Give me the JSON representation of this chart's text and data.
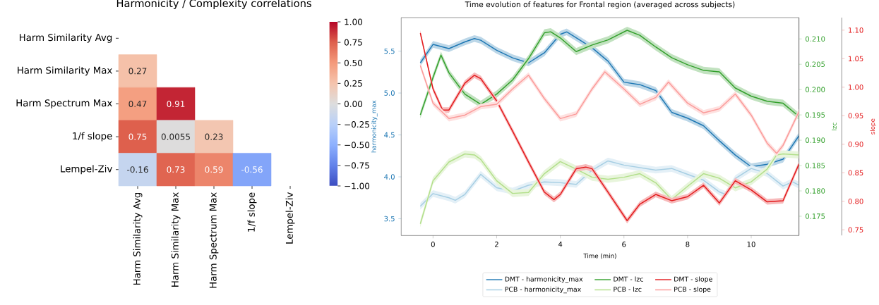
{
  "chart_data": [
    {
      "type": "heatmap",
      "title": "Harmonicity / Complexity correlations",
      "categories": [
        "Harm Similarity Avg",
        "Harm Similarity Max",
        "Harm Spectrum Max",
        "1/f slope",
        "Lempel-Ziv"
      ],
      "y_categories": [
        "Harm Similarity Avg",
        "Harm Similarity Max",
        "Harm Spectrum Max",
        "1/f slope",
        "Lempel-Ziv"
      ],
      "cells": [
        [
          null,
          null,
          null,
          null,
          null
        ],
        [
          0.27,
          null,
          null,
          null,
          null
        ],
        [
          0.47,
          0.91,
          null,
          null,
          null
        ],
        [
          0.75,
          0.0055,
          0.23,
          null,
          null
        ],
        [
          -0.16,
          0.73,
          0.59,
          -0.56,
          null
        ]
      ],
      "clim": [
        -1,
        1
      ],
      "cticks": [
        {
          "value": -1,
          "label": "−1.00"
        },
        {
          "value": -0.75,
          "label": "−0.75"
        },
        {
          "value": -0.5,
          "label": "−0.50"
        },
        {
          "value": -0.25,
          "label": "−0.25"
        },
        {
          "value": 0,
          "label": "0.00"
        },
        {
          "value": 0.25,
          "label": "0.25"
        },
        {
          "value": 0.5,
          "label": "0.50"
        },
        {
          "value": 0.75,
          "label": "0.75"
        },
        {
          "value": 1,
          "label": "1.00"
        }
      ],
      "data_labels": true
    },
    {
      "type": "line",
      "title": "Time evolution of features for Frontal region (averaged across subjects)",
      "xlabel": "Time (min)",
      "ylabel": "harmonicity_max",
      "y2label": "lzc",
      "y3label": "slope",
      "xlim": [
        -1,
        11.5
      ],
      "xticks": [
        0,
        2,
        4,
        6,
        8,
        10
      ],
      "ylim": [
        3.3,
        5.9
      ],
      "yticks": [
        3.5,
        {
          "value": 4,
          "label": "4.0"
        },
        4.5,
        {
          "value": 5,
          "label": "5.0"
        },
        5.5
      ],
      "y2lim": [
        0.1712,
        0.2142
      ],
      "y2ticks": [
        0.175,
        {
          "value": 0.18,
          "label": "0.180"
        },
        0.185,
        {
          "value": 0.19,
          "label": "0.190"
        },
        0.195,
        {
          "value": 0.2,
          "label": "0.200"
        },
        0.205,
        {
          "value": 0.21,
          "label": "0.210"
        }
      ],
      "y3lim": [
        0.74,
        1.122
      ],
      "y3ticks": [
        0.75,
        {
          "value": 0.8,
          "label": "0.80"
        },
        0.85,
        {
          "value": 0.9,
          "label": "0.90"
        },
        0.95,
        {
          "value": 1,
          "label": "1.00"
        },
        1.05,
        {
          "value": 1.1,
          "label": "1.10"
        }
      ],
      "legend": "bottom",
      "series": [
        {
          "name": "DMT - harmonicity_max",
          "color": "#1f78b4",
          "axis": "y",
          "x": [
            -0.4,
            0,
            0.5,
            1,
            1.3,
            1.5,
            2,
            2.5,
            3,
            3.5,
            4,
            4.2,
            4.5,
            5,
            5.5,
            6,
            6.5,
            7,
            7.5,
            8,
            8.5,
            9,
            9.5,
            10,
            10.5,
            11,
            11.5
          ],
          "values": [
            5.36,
            5.58,
            5.53,
            5.61,
            5.65,
            5.63,
            5.51,
            5.42,
            5.36,
            5.48,
            5.7,
            5.73,
            5.66,
            5.54,
            5.38,
            5.13,
            5.1,
            5.03,
            4.77,
            4.7,
            4.61,
            4.43,
            4.26,
            4.12,
            4.15,
            4.21,
            4.49
          ],
          "lower": [
            5.32,
            5.54,
            5.49,
            5.57,
            5.61,
            5.59,
            5.47,
            5.38,
            5.32,
            5.44,
            5.66,
            5.69,
            5.62,
            5.5,
            5.34,
            5.09,
            5.06,
            4.99,
            4.73,
            4.66,
            4.57,
            4.39,
            4.22,
            4.08,
            4.11,
            4.17,
            4.45
          ],
          "upper": [
            5.4,
            5.62,
            5.57,
            5.65,
            5.69,
            5.67,
            5.55,
            5.46,
            5.4,
            5.52,
            5.74,
            5.77,
            5.7,
            5.58,
            5.42,
            5.17,
            5.14,
            5.07,
            4.81,
            4.74,
            4.65,
            4.47,
            4.3,
            4.16,
            4.19,
            4.25,
            4.53
          ]
        },
        {
          "name": "PCB - harmonicity_max",
          "color": "#a6cee3",
          "axis": "y",
          "x": [
            -0.4,
            0,
            0.5,
            0.7,
            1,
            1.5,
            2,
            2.5,
            3,
            3.5,
            4,
            4.5,
            5,
            5.5,
            6,
            7,
            7.5,
            8,
            8.5,
            9,
            9.2,
            9.5,
            10,
            10.5,
            11,
            11.3,
            11.5
          ],
          "values": [
            3.65,
            3.8,
            3.75,
            3.72,
            3.79,
            4.03,
            3.87,
            3.83,
            3.9,
            3.94,
            3.93,
            3.91,
            4.08,
            4.19,
            4.14,
            4.08,
            4.1,
            4.03,
            3.96,
            3.82,
            3.79,
            3.98,
            4.1,
            4.04,
            3.89,
            3.94,
            3.9
          ],
          "lower": [
            3.61,
            3.76,
            3.71,
            3.68,
            3.75,
            3.99,
            3.83,
            3.79,
            3.86,
            3.9,
            3.89,
            3.87,
            4.04,
            4.15,
            4.1,
            4.04,
            4.06,
            3.99,
            3.92,
            3.78,
            3.75,
            3.94,
            4.06,
            4.0,
            3.85,
            3.9,
            3.86
          ],
          "upper": [
            3.69,
            3.84,
            3.79,
            3.76,
            3.83,
            4.07,
            3.91,
            3.87,
            3.94,
            3.98,
            3.97,
            3.95,
            4.12,
            4.23,
            4.18,
            4.12,
            4.14,
            4.07,
            4.0,
            3.86,
            3.83,
            4.02,
            4.14,
            4.08,
            3.93,
            3.98,
            3.94
          ]
        },
        {
          "name": "DMT - lzc",
          "color": "#33a02c",
          "axis": "y2",
          "x": [
            -0.4,
            0,
            0.25,
            0.5,
            1,
            1.5,
            2,
            2.5,
            3,
            3.5,
            3.7,
            4,
            4.5,
            5,
            5.5,
            6.1,
            6.5,
            7,
            7.5,
            8,
            8.5,
            9,
            9.5,
            10,
            10.5,
            11,
            11.5
          ],
          "values": [
            0.195,
            0.2024,
            0.2068,
            0.2033,
            0.1991,
            0.1971,
            0.1991,
            0.2019,
            0.2061,
            0.2112,
            0.2114,
            0.2102,
            0.2075,
            0.2088,
            0.2098,
            0.2117,
            0.2107,
            0.2084,
            0.2063,
            0.2049,
            0.2038,
            0.2035,
            0.2003,
            0.1987,
            0.1977,
            0.1973,
            0.1947
          ],
          "lower": [
            0.1943,
            0.2017,
            0.2061,
            0.2026,
            0.1984,
            0.1964,
            0.1984,
            0.2012,
            0.2054,
            0.2105,
            0.2107,
            0.2095,
            0.2068,
            0.2081,
            0.2091,
            0.211,
            0.21,
            0.2077,
            0.2056,
            0.2042,
            0.2031,
            0.2028,
            0.1996,
            0.198,
            0.197,
            0.1966,
            0.194
          ],
          "upper": [
            0.1957,
            0.2031,
            0.2075,
            0.204,
            0.1998,
            0.1978,
            0.1998,
            0.2026,
            0.2068,
            0.2119,
            0.2121,
            0.2109,
            0.2082,
            0.2095,
            0.2105,
            0.2124,
            0.2114,
            0.2091,
            0.207,
            0.2056,
            0.2045,
            0.2042,
            0.201,
            0.1994,
            0.1984,
            0.198,
            0.1954
          ]
        },
        {
          "name": "PCB - lzc",
          "color": "#b2df8a",
          "axis": "y2",
          "x": [
            -0.4,
            0,
            0.5,
            1,
            1.3,
            1.5,
            2,
            2.5,
            3,
            3.5,
            4,
            4.5,
            5,
            5.5,
            6,
            6.5,
            7,
            7.5,
            8,
            8.5,
            9,
            9.5,
            10,
            10.5,
            10.8,
            11,
            11.5
          ],
          "values": [
            0.1735,
            0.182,
            0.1857,
            0.1873,
            0.1871,
            0.1862,
            0.182,
            0.1795,
            0.1797,
            0.1834,
            0.1858,
            0.1843,
            0.1827,
            0.1823,
            0.1827,
            0.1834,
            0.1816,
            0.1783,
            0.1809,
            0.1834,
            0.1825,
            0.1806,
            0.1818,
            0.1843,
            0.1871,
            0.1873,
            0.1871
          ],
          "lower": [
            0.1728,
            0.1813,
            0.185,
            0.1866,
            0.1864,
            0.1855,
            0.1813,
            0.1788,
            0.179,
            0.1827,
            0.1851,
            0.1836,
            0.182,
            0.1816,
            0.182,
            0.1827,
            0.1809,
            0.1776,
            0.1802,
            0.1827,
            0.1818,
            0.1799,
            0.1811,
            0.1836,
            0.1864,
            0.1866,
            0.1864
          ],
          "upper": [
            0.1742,
            0.1827,
            0.1864,
            0.188,
            0.1878,
            0.1869,
            0.1827,
            0.1802,
            0.1804,
            0.1841,
            0.1865,
            0.185,
            0.1834,
            0.183,
            0.1834,
            0.1841,
            0.1823,
            0.179,
            0.1816,
            0.1841,
            0.1832,
            0.1813,
            0.1825,
            0.185,
            0.1878,
            0.188,
            0.1878
          ]
        },
        {
          "name": "DMT - slope",
          "color": "#e31a1c",
          "axis": "y3",
          "x": [
            -0.4,
            0,
            0.3,
            0.5,
            1,
            1.3,
            1.5,
            2,
            2.5,
            3,
            3.5,
            3.8,
            4,
            4.5,
            4.8,
            5,
            5.5,
            6.1,
            6.5,
            7,
            7.5,
            8,
            8.5,
            9,
            9.5,
            10,
            10.5,
            11,
            11.5
          ],
          "values": [
            1.095,
            0.997,
            0.96,
            0.96,
            1.007,
            1.021,
            1.015,
            0.976,
            0.923,
            0.869,
            0.816,
            0.803,
            0.812,
            0.857,
            0.86,
            0.857,
            0.816,
            0.766,
            0.795,
            0.812,
            0.801,
            0.808,
            0.828,
            0.797,
            0.836,
            0.82,
            0.799,
            0.801,
            0.865
          ],
          "lower": [
            1.09,
            0.992,
            0.955,
            0.955,
            1.002,
            1.016,
            1.01,
            0.971,
            0.918,
            0.864,
            0.811,
            0.798,
            0.807,
            0.852,
            0.855,
            0.852,
            0.811,
            0.761,
            0.79,
            0.807,
            0.796,
            0.803,
            0.823,
            0.792,
            0.831,
            0.815,
            0.794,
            0.796,
            0.86
          ],
          "upper": [
            1.1,
            1.002,
            0.965,
            0.965,
            1.012,
            1.026,
            1.02,
            0.981,
            0.928,
            0.874,
            0.821,
            0.808,
            0.817,
            0.862,
            0.865,
            0.862,
            0.821,
            0.771,
            0.8,
            0.817,
            0.806,
            0.813,
            0.833,
            0.802,
            0.841,
            0.825,
            0.804,
            0.806,
            0.87
          ]
        },
        {
          "name": "PCB - slope",
          "color": "#fb9a99",
          "axis": "y3",
          "x": [
            -0.4,
            0,
            0.5,
            1,
            1.5,
            2,
            2.5,
            3,
            3.5,
            4,
            4.5,
            5,
            5.4,
            6,
            6.5,
            7,
            7.4,
            8,
            8.5,
            9,
            9.5,
            10,
            10.5,
            10.8,
            11,
            11.5
          ],
          "values": [
            1.038,
            0.972,
            0.945,
            0.951,
            0.966,
            0.97,
            0.997,
            1.021,
            0.98,
            0.945,
            0.953,
            0.997,
            1.027,
            0.997,
            0.97,
            0.982,
            1.009,
            0.972,
            0.955,
            0.962,
            0.988,
            0.951,
            0.902,
            0.884,
            0.898,
            0.957
          ],
          "lower": [
            1.033,
            0.967,
            0.94,
            0.946,
            0.961,
            0.965,
            0.992,
            1.016,
            0.975,
            0.94,
            0.948,
            0.992,
            1.022,
            0.992,
            0.965,
            0.977,
            1.004,
            0.967,
            0.95,
            0.957,
            0.983,
            0.946,
            0.897,
            0.879,
            0.893,
            0.952
          ],
          "upper": [
            1.043,
            0.977,
            0.95,
            0.956,
            0.971,
            0.975,
            1.002,
            1.026,
            0.985,
            0.95,
            0.958,
            1.002,
            1.032,
            1.002,
            0.975,
            0.987,
            1.014,
            0.977,
            0.96,
            0.967,
            0.993,
            0.956,
            0.907,
            0.889,
            0.903,
            0.962
          ]
        }
      ]
    }
  ]
}
